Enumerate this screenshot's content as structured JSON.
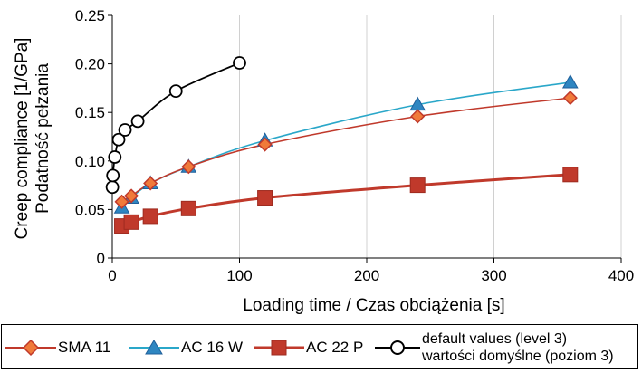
{
  "chart_data": {
    "type": "line",
    "ylabel_line1": "Creep compliance [1/GPa]",
    "ylabel_line2": "Podatność pełzania",
    "xlabel": "Loading time / Czas obciążenia [s]",
    "xlim": [
      0,
      400
    ],
    "ylim": [
      0,
      0.25
    ],
    "xticks": [
      0,
      100,
      200,
      300,
      400
    ],
    "yticks": [
      0,
      0.05,
      0.1,
      0.15,
      0.2,
      0.25
    ],
    "ytick_labels": [
      "0",
      "0.05",
      "0.10",
      "0.15",
      "0.20",
      "0.25"
    ],
    "grid": "vertical",
    "series": [
      {
        "name": "SMA 11",
        "color": "#c0392b",
        "marker_fill": "#f07a3a",
        "marker": "diamond",
        "x": [
          7.5,
          15,
          30,
          60,
          120,
          240,
          360
        ],
        "y": [
          0.058,
          0.064,
          0.077,
          0.094,
          0.117,
          0.146,
          0.165
        ]
      },
      {
        "name": "AC 16 W",
        "color": "#2aa7c9",
        "marker_fill": "#2e86c1",
        "marker": "triangle",
        "x": [
          7.5,
          15,
          30,
          60,
          120,
          240,
          360
        ],
        "y": [
          0.052,
          0.062,
          0.077,
          0.094,
          0.121,
          0.158,
          0.181
        ]
      },
      {
        "name": "AC 22 P",
        "color": "#c0392b",
        "marker_fill": "#c0392b",
        "marker": "square",
        "x": [
          7.5,
          15,
          30,
          60,
          120,
          240,
          360
        ],
        "y": [
          0.033,
          0.037,
          0.043,
          0.051,
          0.062,
          0.075,
          0.086
        ]
      },
      {
        "name": "default values (level 3) / wartości domyślne (poziom 3)",
        "color": "#000000",
        "marker_fill": "#ffffff",
        "marker": "circle",
        "x": [
          0.1,
          0.5,
          2,
          5,
          10,
          20,
          50,
          100
        ],
        "y": [
          0.073,
          0.085,
          0.104,
          0.122,
          0.132,
          0.141,
          0.172,
          0.201
        ]
      }
    ]
  },
  "legend": {
    "sma": "SMA 11",
    "ac16": "AC 16 W",
    "ac22": "AC 22 P",
    "default_line1": "default values (level 3)",
    "default_line2": "wartości domyślne (poziom 3)"
  }
}
